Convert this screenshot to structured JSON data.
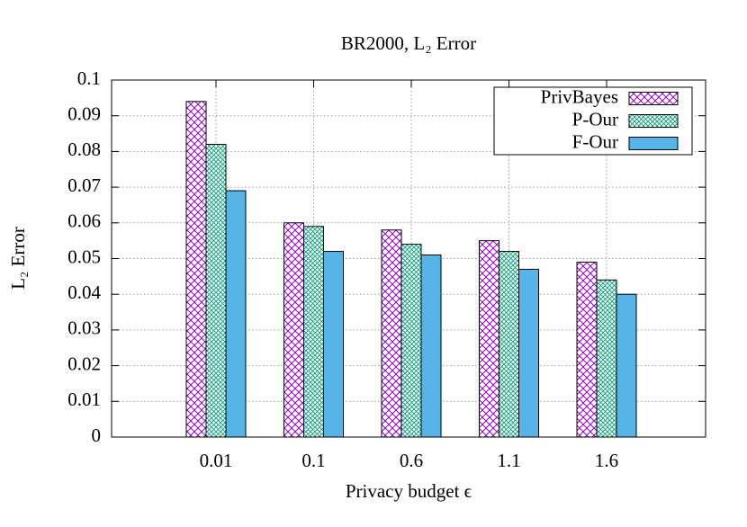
{
  "chart_data": {
    "type": "bar",
    "title": "BR2000, L₂ Error",
    "x_label": "Privacy budget ϵ",
    "y_label": "L₂ Error",
    "categories": [
      "0.01",
      "0.1",
      "0.6",
      "1.1",
      "1.6"
    ],
    "series": [
      {
        "name": "PrivBayes",
        "color": "#9400d3",
        "pattern": "crosshatch",
        "values": [
          0.094,
          0.06,
          0.058,
          0.055,
          0.049
        ]
      },
      {
        "name": "P-Our",
        "color": "#009e73",
        "pattern": "crosshatch",
        "values": [
          0.082,
          0.059,
          0.054,
          0.052,
          0.044
        ]
      },
      {
        "name": "F-Our",
        "color": "#56b4e9",
        "pattern": "solid",
        "values": [
          0.069,
          0.052,
          0.051,
          0.047,
          0.04
        ]
      }
    ],
    "ylim": [
      0,
      0.1
    ],
    "yticks": [
      0,
      0.01,
      0.02,
      0.03,
      0.04,
      0.05,
      0.06,
      0.07,
      0.08,
      0.09,
      0.1
    ],
    "grid": true,
    "legend": "top-right"
  }
}
